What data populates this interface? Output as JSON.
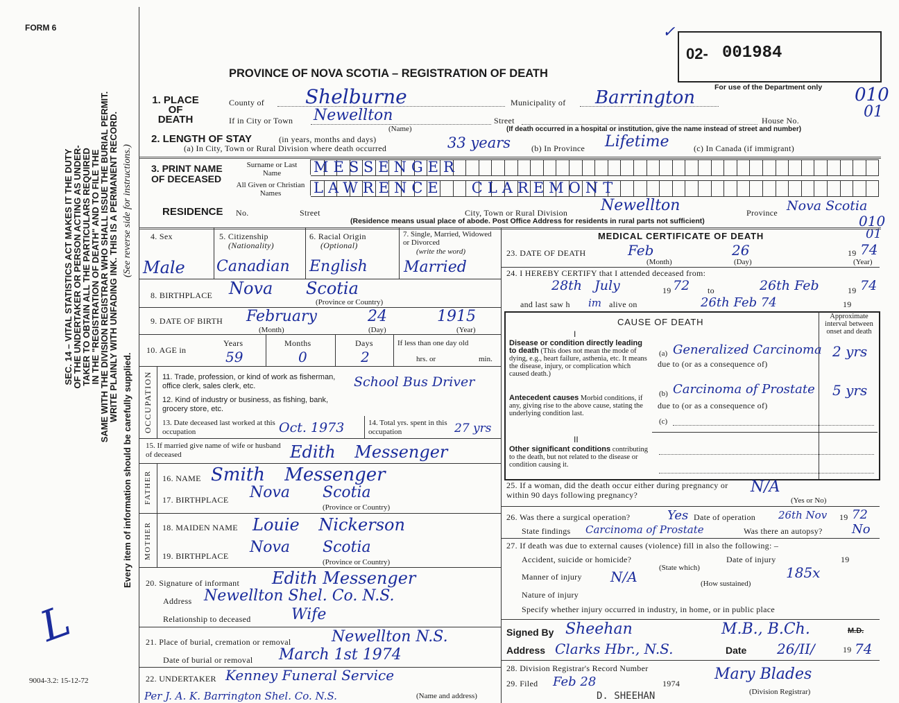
{
  "form_id": "FORM 6",
  "title": "PROVINCE OF NOVA SCOTIA – REGISTRATION OF DEATH",
  "registration": {
    "prefix": "02-",
    "number": "001984",
    "note": "For use of the Department only",
    "codes": [
      "010",
      "01",
      "010",
      "01"
    ],
    "check": "✓"
  },
  "margin": {
    "statute": [
      "SEC. 14 – VITAL STATISTICS ACT MAKES IT THE DUTY",
      "OF THE UNDERTAKER OR PERSON ACTING AS UNDER-",
      "TAKER TO OBTAIN ALL THE PARTICULARS REQUIRED",
      "IN THE \"REGISTRATION OF DEATH\" AND TO FILE THE",
      "SAME WITH THE DIVISION REGISTRAR WHO SHALL ISSUE THE BURIAL PERMIT.",
      "WRITE PLAINLY WITH UNFADING INK. THIS IS A PERMANENT RECORD."
    ],
    "every_item": "Every item of information should be carefully supplied.",
    "see_reverse": "(See reverse side for instructions.)",
    "form_code": "9004-3.2: 15-12-72",
    "mark": "L"
  },
  "place": {
    "label": "1. PLACE OF DEATH",
    "county_label": "County of",
    "county": "Shelburne",
    "municipality_label": "Municipality of",
    "municipality": "Barrington",
    "city_label": "If in City or Town",
    "city": "Newellton",
    "name_note": "(Name)",
    "street_label": "Street",
    "house_label": "House No.",
    "hospital_note": "(If death occurred in a hospital or institution, give the name instead of street and number)"
  },
  "stay": {
    "label": "2. LENGTH OF STAY",
    "units": "(in years, months and days)",
    "a_label": "(a) In City, Town or Rural Division where death occurred",
    "a": "33 years",
    "b_label": "(b) In Province",
    "b": "Lifetime",
    "c_label": "(c) In Canada (if immigrant)"
  },
  "name": {
    "label": "3. PRINT NAME OF DECEASED",
    "surname_label": "Surname or Last Name",
    "surname": "MESSENGER",
    "given_label": "All Given or Christian Names",
    "given": "LAWRENCE   CLAREMONT"
  },
  "residence": {
    "label": "RESIDENCE",
    "no_label": "No.",
    "street_label": "Street",
    "city_label": "City, Town or Rural Division",
    "city": "Newellton",
    "province_label": "Province",
    "province": "Nova Scotia",
    "note": "(Residence means usual place of abode. Post Office Address for residents in rural parts not sufficient)"
  },
  "personal": {
    "sex_label": "4. Sex",
    "sex": "Male",
    "citizenship_label": "5. Citizenship",
    "citizenship_sub": "(Nationality)",
    "citizenship": "Canadian",
    "racial_label": "6. Racial Origin",
    "racial_sub": "(Optional)",
    "racial": "English",
    "marital_label": "7. Single, Married, Widowed or Divorced",
    "marital_sub": "(write the word)",
    "marital": "Married"
  },
  "birthplace": {
    "label": "8. BIRTHPLACE",
    "value": "Nova Scotia",
    "note": "(Province or Country)"
  },
  "dob": {
    "label": "9. DATE OF BIRTH",
    "month": "February",
    "day": "24",
    "year": "1915",
    "month_note": "(Month)",
    "day_note": "(Day)",
    "year_note": "(Year)"
  },
  "age": {
    "label": "10. AGE in",
    "years_label": "Years",
    "years": "59",
    "months_label": "Months",
    "months": "0",
    "days_label": "Days",
    "days": "2",
    "less_label": "If less than one day old",
    "hrs": "hrs. or",
    "min": "min."
  },
  "occupation": {
    "side": "OCCUPATION",
    "trade_label": "11. Trade, profession, or kind of work as fisherman, office clerk, sales clerk, etc.",
    "trade": "School Bus Driver",
    "industry_label": "12. Kind of industry or business, as fishing, bank, grocery store, etc.",
    "last_worked_label": "13. Date deceased last worked at this occupation",
    "last_worked": "Oct. 1973",
    "total_label": "14. Total yrs. spent in this occupation",
    "total": "27 yrs"
  },
  "spouse": {
    "label": "15. If married give name of wife or husband of deceased",
    "value": "Edith Messenger"
  },
  "father": {
    "side": "FATHER",
    "name_label": "16. NAME",
    "name": "Smith Messenger",
    "birth_label": "17. BIRTHPLACE",
    "birth": "Nova Scotia",
    "note": "(Province or Country)"
  },
  "mother": {
    "side": "MOTHER",
    "name_label": "18. MAIDEN NAME",
    "name": "Louie Nickerson",
    "birth_label": "19. BIRTHPLACE",
    "birth": "Nova Scotia",
    "note": "(Province or Country)"
  },
  "informant": {
    "sig_label": "20. Signature of informant",
    "sig": "Edith Messenger",
    "addr_label": "Address",
    "addr": "Newellton Shel. Co. N.S.",
    "rel_label": "Relationship to deceased",
    "rel": "Wife"
  },
  "burial": {
    "place_label": "21. Place of burial, cremation or removal",
    "place": "Newellton N.S.",
    "date_label": "Date of burial or removal",
    "date": "March 1st 1974"
  },
  "undertaker": {
    "label": "22. UNDERTAKER",
    "value": "Kenney Funeral Service",
    "value2": "Per J. A. K. Barrington Shel. Co. N.S.",
    "note": "(Name and address)"
  },
  "medical": {
    "title": "MEDICAL CERTIFICATE OF DEATH",
    "death_label": "23. DATE OF DEATH",
    "death_month": "Feb",
    "death_day": "26",
    "death_year": "74",
    "year_prefix": "19",
    "month_note": "(Month)",
    "day_note": "(Day)",
    "year_note": "(Year)",
    "certify_label": "24. I HEREBY CERTIFY that I attended deceased from:",
    "from": "28th July",
    "from_year": "72",
    "to_label": "to",
    "to": "26th Feb",
    "to_year": "74",
    "last_saw_label": "and last saw h",
    "last_saw_him": "im",
    "alive_label": "alive on",
    "last_saw": "26th Feb 74"
  },
  "cause": {
    "title": "CAUSE OF DEATH",
    "interval_label": "Approximate interval between onset and death",
    "part1": "I",
    "direct_label": "Disease or condition directly leading to death",
    "direct_note": "(This does not mean the mode of dying, e.g., heart failure, asthenia, etc. It means the disease, injury, or complication which caused death.)",
    "a_label": "(a)",
    "a": "Generalized Carcinoma",
    "a_interval": "2 yrs",
    "due_to": "due to (or as a consequence of)",
    "antecedent_label": "Antecedent causes",
    "antecedent_note": "Morbid conditions, if any, giving rise to the above cause, stating the underlying condition last.",
    "b_label": "(b)",
    "b": "Carcinoma of Prostate",
    "b_interval": "5 yrs",
    "c_label": "(c)",
    "part2": "II",
    "other_label": "Other significant conditions",
    "other_note": "contributing to the death, but not related to the disease or condition causing it."
  },
  "q25": {
    "label": "25. If a woman, did the death occur either during pregnancy or within 90 days following pregnancy?",
    "value": "N/A",
    "note": "(Yes or No)"
  },
  "q26": {
    "label": "26. Was there a surgical operation?",
    "value": "Yes",
    "date_label": "Date of operation",
    "date": "26th Nov",
    "year": "72",
    "findings_label": "State findings",
    "findings": "Carcinoma of Prostate",
    "autopsy_label": "Was there an autopsy?",
    "autopsy": "No"
  },
  "q27": {
    "label": "27. If death was due to external causes (violence) fill in also the following: –",
    "accident_label": "Accident, suicide or homicide?",
    "state_note": "(State which)",
    "value": "N/A",
    "injury_date_label": "Date of injury",
    "manner_label": "Manner of injury",
    "manner_note": "(How sustained)",
    "code": "185x",
    "nature_label": "Nature of injury",
    "specify_label": "Specify whether injury occurred in industry, in home, or in public place"
  },
  "signed": {
    "label": "Signed By",
    "signature": "Sheehan",
    "degree": "M.B., B.Ch.",
    "md": "M.D.",
    "addr_label": "Address",
    "addr": "Clarks Hbr., N.S.",
    "date_label": "Date",
    "date": "26/II/",
    "year": "74"
  },
  "registrar": {
    "record_label": "28. Division Registrar's Record Number",
    "filed_label": "29. Filed",
    "filed": "Feb 28",
    "filed_year": "1974",
    "sig": "Mary Blades",
    "sig_note": "(Division Registrar)",
    "stamp": "D. SHEEHAN"
  }
}
